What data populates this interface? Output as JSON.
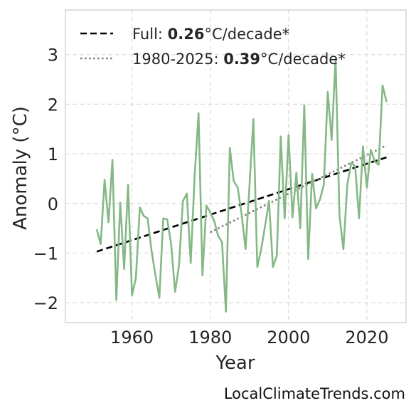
{
  "chart_data": {
    "type": "line",
    "xlabel": "Year",
    "ylabel": "Anomaly (°C)",
    "xlim": [
      1943,
      2030
    ],
    "ylim": [
      -2.4,
      3.9
    ],
    "xticks": [
      1960,
      1980,
      2000,
      2020
    ],
    "yticks": [
      -2,
      -1,
      0,
      1,
      2,
      3
    ],
    "ytick_labels": [
      "−2",
      "−1",
      "0",
      "1",
      "2",
      "3"
    ],
    "grid": true,
    "legend_placement": "top-left",
    "series": [
      {
        "x": [
          1951,
          1952,
          1953,
          1954,
          1955,
          1956,
          1957,
          1958,
          1959,
          1960,
          1961,
          1962,
          1963,
          1964,
          1965,
          1966,
          1967,
          1968,
          1969,
          1970,
          1971,
          1972,
          1973,
          1974,
          1975,
          1976,
          1977,
          1978,
          1979,
          1980,
          1981,
          1982,
          1983,
          1984,
          1985,
          1986,
          1987,
          1988,
          1989,
          1990,
          1991,
          1992,
          1993,
          1994,
          1995,
          1996,
          1997,
          1998,
          1999,
          2000,
          2001,
          2002,
          2003,
          2004,
          2005,
          2006,
          2007,
          2008,
          2009,
          2010,
          2011,
          2012,
          2013,
          2014,
          2015,
          2016,
          2017,
          2018,
          2019,
          2020,
          2021,
          2022,
          2023,
          2024,
          2025
        ],
        "values": [
          -0.52,
          -0.82,
          0.48,
          -0.38,
          0.88,
          -1.95,
          0.02,
          -1.32,
          0.38,
          -1.85,
          -1.5,
          -0.08,
          -0.25,
          -0.3,
          -0.95,
          -1.45,
          -1.9,
          -0.3,
          -0.32,
          -0.82,
          -1.78,
          -1.25,
          0.05,
          0.2,
          -1.2,
          0.55,
          1.82,
          -1.45,
          -0.04,
          -0.18,
          -0.35,
          -0.65,
          -0.78,
          -2.18,
          1.12,
          0.45,
          0.32,
          -0.22,
          -0.92,
          0.35,
          1.7,
          -1.28,
          -0.92,
          -0.45,
          0.05,
          -1.28,
          -1.05,
          1.35,
          -0.3,
          1.38,
          -0.28,
          0.62,
          -0.5,
          1.98,
          -1.12,
          0.6,
          -0.1,
          0.08,
          0.38,
          2.25,
          1.28,
          2.92,
          -0.25,
          -0.92,
          0.38,
          0.82,
          0.75,
          -0.3,
          1.15,
          0.32,
          1.08,
          0.85,
          0.78,
          2.38,
          2.05
        ],
        "color": "#85b885"
      }
    ],
    "trends": [
      {
        "name_prefix": "Full: ",
        "name_value": "0.26",
        "name_suffix": "°C/decade*",
        "x": [
          1951,
          2025
        ],
        "values": [
          -0.97,
          0.93
        ],
        "style": "dashed",
        "color": "#000000"
      },
      {
        "name_prefix": "1980-2025: ",
        "name_value": "0.39",
        "name_suffix": "°C/decade*",
        "x": [
          1980,
          2025
        ],
        "values": [
          -0.58,
          1.17
        ],
        "style": "dotted",
        "color": "#808080"
      }
    ]
  },
  "footer": {
    "source": "LocalClimateTrends.com"
  }
}
